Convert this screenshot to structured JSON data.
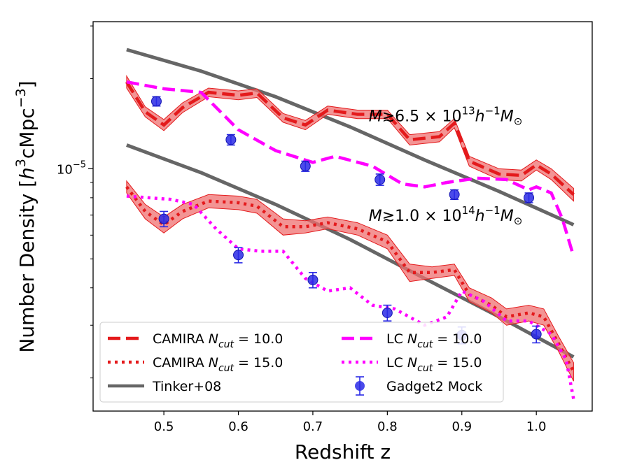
{
  "chart_data": {
    "type": "line",
    "xlabel": "Redshift z",
    "ylabel": "Number Density [h³cMpc⁻³]",
    "ylabel_parts": [
      "Number Density [",
      "h",
      "3",
      "cMpc",
      "−3",
      "]"
    ],
    "xlim": [
      0.405,
      1.075
    ],
    "ylim": [
      1.55e-06,
      3.1e-05
    ],
    "yscale": "log",
    "x_ticks": [
      0.5,
      0.6,
      0.7,
      0.8,
      0.9,
      1.0
    ],
    "x_tick_labels": [
      "0.5",
      "0.6",
      "0.7",
      "0.8",
      "0.9",
      "1.0"
    ],
    "y_ticks": [
      1e-05
    ],
    "y_tick_labels": [
      {
        "base": "10",
        "exp": "−5"
      }
    ],
    "annotations": [
      {
        "text": "M≳6.5 × 10¹³h⁻¹M⊙",
        "parts": [
          "M",
          "≳6.5 × 10",
          "13",
          "h",
          "−1",
          "M",
          "⊙"
        ],
        "x": 0.775,
        "y": 1.44e-05
      },
      {
        "text": "M≳1.0 × 10¹⁴h⁻¹M⊙",
        "parts": [
          "M",
          "≳1.0 × 10",
          "14",
          "h",
          "−1",
          "M",
          "⊙"
        ],
        "x": 0.775,
        "y": 6.7e-06
      }
    ],
    "colors": {
      "camira": "#e41a1c",
      "camira_band": "#ef7070",
      "lc": "#ff00ff",
      "tinker": "#666666",
      "gadget": "#2a2ae6"
    },
    "series": [
      {
        "name": "CAMIRA N_cut = 10.0",
        "style": "dashed",
        "band": true,
        "x": [
          0.45,
          0.475,
          0.5,
          0.525,
          0.56,
          0.6,
          0.625,
          0.66,
          0.69,
          0.72,
          0.76,
          0.8,
          0.83,
          0.87,
          0.89,
          0.91,
          0.95,
          0.98,
          1.0,
          1.02,
          1.05
        ],
        "y": [
          1.95e-05,
          1.55e-05,
          1.4e-05,
          1.6e-05,
          1.8e-05,
          1.76e-05,
          1.79e-05,
          1.48e-05,
          1.4e-05,
          1.57e-05,
          1.52e-05,
          1.52e-05,
          1.25e-05,
          1.28e-05,
          1.42e-05,
          1.06e-05,
          9.6e-06,
          9.5e-06,
          1.03e-05,
          9.6e-06,
          8.2e-06
        ],
        "band_lo": [
          1.86e-05,
          1.49e-05,
          1.34e-05,
          1.54e-05,
          1.74e-05,
          1.7e-05,
          1.73e-05,
          1.43e-05,
          1.35e-05,
          1.52e-05,
          1.47e-05,
          1.47e-05,
          1.2e-05,
          1.23e-05,
          1.37e-05,
          1.02e-05,
          9.2e-06,
          9.1e-06,
          9.9e-06,
          9.2e-06,
          7.8e-06
        ],
        "band_hi": [
          2.04e-05,
          1.61e-05,
          1.46e-05,
          1.66e-05,
          1.86e-05,
          1.82e-05,
          1.85e-05,
          1.53e-05,
          1.45e-05,
          1.62e-05,
          1.57e-05,
          1.57e-05,
          1.3e-05,
          1.33e-05,
          1.47e-05,
          1.1e-05,
          1e-05,
          9.9e-06,
          1.07e-05,
          1e-05,
          8.6e-06
        ]
      },
      {
        "name": "CAMIRA N_cut = 15.0",
        "style": "dotted",
        "band": true,
        "x": [
          0.45,
          0.475,
          0.5,
          0.525,
          0.56,
          0.6,
          0.625,
          0.66,
          0.69,
          0.72,
          0.76,
          0.8,
          0.83,
          0.86,
          0.89,
          0.91,
          0.94,
          0.96,
          0.99,
          1.01,
          1.03,
          1.05
        ],
        "y": [
          8.7e-06,
          7.2e-06,
          6.5e-06,
          7.2e-06,
          7.8e-06,
          7.7e-06,
          7.5e-06,
          6.4e-06,
          6.4e-06,
          6.6e-06,
          6.3e-06,
          5.7e-06,
          4.5e-06,
          4.5e-06,
          4.6e-06,
          3.8e-06,
          3.5e-06,
          3.2e-06,
          3.3e-06,
          3.2e-06,
          2.6e-06,
          2.1e-06
        ],
        "band_lo": [
          8.3e-06,
          6.8e-06,
          6.1e-06,
          6.8e-06,
          7.4e-06,
          7.3e-06,
          7.1e-06,
          6e-06,
          6.1e-06,
          6.3e-06,
          6e-06,
          5.4e-06,
          4.2e-06,
          4.3e-06,
          4.4e-06,
          3.6e-06,
          3.3e-06,
          3e-06,
          3.1e-06,
          3e-06,
          2.45e-06,
          1.95e-06
        ],
        "band_hi": [
          9.1e-06,
          7.6e-06,
          6.9e-06,
          7.6e-06,
          8.2e-06,
          8.1e-06,
          7.9e-06,
          6.8e-06,
          6.7e-06,
          6.9e-06,
          6.6e-06,
          6e-06,
          4.8e-06,
          4.7e-06,
          4.8e-06,
          4e-06,
          3.7e-06,
          3.4e-06,
          3.5e-06,
          3.4e-06,
          2.75e-06,
          2.25e-06
        ]
      },
      {
        "name": "LC N_cut = 10.0",
        "style": "dashed",
        "x": [
          0.45,
          0.5,
          0.55,
          0.6,
          0.65,
          0.7,
          0.73,
          0.78,
          0.82,
          0.85,
          0.88,
          0.92,
          0.96,
          0.99,
          1.0,
          1.02,
          1.035,
          1.05
        ],
        "y": [
          1.95e-05,
          1.85e-05,
          1.8e-05,
          1.35e-05,
          1.15e-05,
          1.05e-05,
          1.1e-05,
          1.02e-05,
          8.9e-06,
          8.7e-06,
          9e-06,
          9.3e-06,
          9.2e-06,
          8.5e-06,
          8.7e-06,
          8.3e-06,
          6.8e-06,
          5.1e-06
        ]
      },
      {
        "name": "LC N_cut = 15.0",
        "style": "dotted",
        "x": [
          0.45,
          0.48,
          0.51,
          0.54,
          0.57,
          0.6,
          0.63,
          0.66,
          0.69,
          0.72,
          0.75,
          0.78,
          0.81,
          0.85,
          0.88,
          0.9,
          0.93,
          0.96,
          0.99,
          1.02,
          1.04,
          1.05
        ],
        "y": [
          8.1e-06,
          8e-06,
          7.9e-06,
          7.6e-06,
          6.3e-06,
          5.4e-06,
          5.3e-06,
          5.3e-06,
          4.3e-06,
          3.9e-06,
          4e-06,
          3.5e-06,
          3.4e-06,
          3e-06,
          3.2e-06,
          3.9e-06,
          3.6e-06,
          3.1e-06,
          3.1e-06,
          2.8e-06,
          2.3e-06,
          1.7e-06
        ]
      },
      {
        "name": "Tinker+08",
        "style": "solid",
        "x": [
          0.45,
          0.55,
          0.65,
          0.75,
          0.85,
          0.95,
          1.05
        ],
        "y": [
          2.5e-05,
          2.12e-05,
          1.74e-05,
          1.38e-05,
          1.07e-05,
          8.4e-06,
          6.5e-06
        ],
        "x2": [
          0.45,
          0.55,
          0.65,
          0.75,
          0.85,
          0.95,
          1.05
        ],
        "y2": [
          1.2e-05,
          9.7e-06,
          7.6e-06,
          5.8e-06,
          4.3e-06,
          3.2e-06,
          2.35e-06
        ]
      },
      {
        "name": "Gadget2 Mock",
        "style": "errorbar",
        "x": [
          0.49,
          0.59,
          0.69,
          0.79,
          0.89,
          0.99,
          0.5,
          0.6,
          0.7,
          0.8,
          0.9,
          1.0
        ],
        "y": [
          1.68e-05,
          1.25e-05,
          1.02e-05,
          9.2e-06,
          8.2e-06,
          8e-06,
          6.8e-06,
          5.15e-06,
          4.25e-06,
          3.3e-06,
          2.78e-06,
          2.8e-06
        ],
        "yerr": [
          6e-07,
          5e-07,
          4e-07,
          4e-07,
          3e-07,
          3e-07,
          4e-07,
          3e-07,
          2.5e-07,
          2e-07,
          1.8e-07,
          1.8e-07
        ]
      }
    ],
    "legend": {
      "location": "lower left",
      "entries": [
        {
          "label": "CAMIRA N_cut = 10.0",
          "parts": [
            "CAMIRA ",
            "N",
            "cut",
            " = 10.0"
          ],
          "style": "dashed",
          "color": "#e41a1c"
        },
        {
          "label": "LC N_cut = 10.0",
          "parts": [
            "LC ",
            "N",
            "cut",
            " = 10.0"
          ],
          "style": "dashed",
          "color": "#ff00ff"
        },
        {
          "label": "CAMIRA N_cut = 15.0",
          "parts": [
            "CAMIRA ",
            "N",
            "cut",
            " = 15.0"
          ],
          "style": "dotted",
          "color": "#e41a1c"
        },
        {
          "label": "LC N_cut = 15.0",
          "parts": [
            "LC ",
            "N",
            "cut",
            " = 15.0"
          ],
          "style": "dotted",
          "color": "#ff00ff"
        },
        {
          "label": "Tinker+08",
          "parts": [
            "Tinker+08"
          ],
          "style": "solid",
          "color": "#666666"
        },
        {
          "label": "Gadget2 Mock",
          "parts": [
            "Gadget2 Mock"
          ],
          "style": "errorbar",
          "color": "#2a2ae6"
        }
      ]
    }
  }
}
